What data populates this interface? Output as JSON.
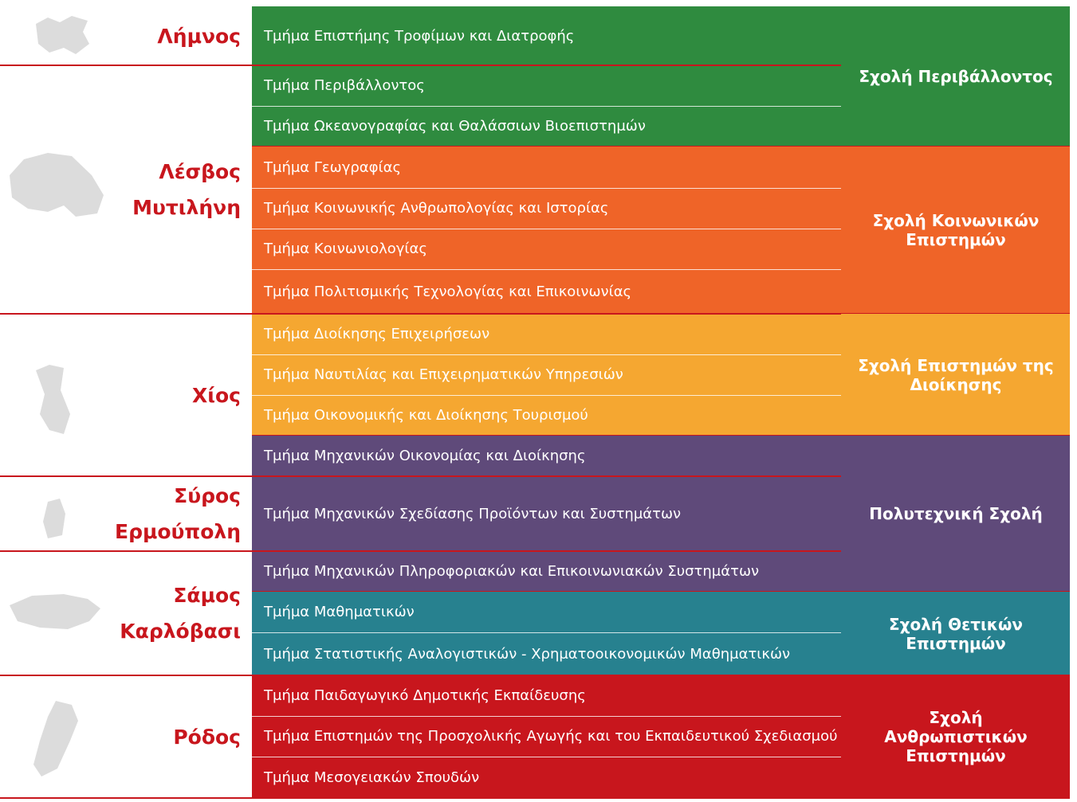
{
  "islands": [
    {
      "names": [
        "Λήμνος"
      ]
    },
    {
      "names": [
        "Λέσβος",
        "Μυτιλήνη"
      ]
    },
    {
      "names": [
        "Χίος"
      ]
    },
    {
      "names": [
        "Σύρος",
        "Ερμούπολη"
      ]
    },
    {
      "names": [
        "Σάμος",
        "Καρλόβασι"
      ]
    },
    {
      "names": [
        "Ρόδος"
      ]
    }
  ],
  "schools": [
    {
      "name": "Σχολή Περιβάλλοντος",
      "color": "#2f8b3f",
      "departments": [
        "Τμήμα Επιστήμης Τροφίμων και Διατροφής",
        "Τμήμα Περιβάλλοντος",
        "Τμήμα Ωκεανογραφίας και Θαλάσσιων Βιοεπιστημών"
      ]
    },
    {
      "name": "Σχολή Κοινωνικών Επιστημών",
      "color": "#ef6428",
      "departments": [
        "Τμήμα Γεωγραφίας",
        "Τμήμα Κοινωνικής Ανθρωπολογίας και Ιστορίας",
        "Τμήμα Κοινωνιολογίας",
        "Τμήμα Πολιτισμικής Τεχνολογίας και Επικοινωνίας"
      ]
    },
    {
      "name": "Σχολή Επιστημών της Διοίκησης",
      "color": "#f5a731",
      "departments": [
        "Τμήμα Διοίκησης Επιχειρήσεων",
        "Τμήμα Ναυτιλίας και Επιχειρηματικών Υπηρεσιών",
        "Τμήμα Οικονομικής και Διοίκησης Τουρισμού"
      ]
    },
    {
      "name": "Πολυτεχνική Σχολή",
      "color": "#5f4a7a",
      "departments": [
        "Τμήμα Μηχανικών Οικονομίας και Διοίκησης",
        "Τμήμα Μηχανικών Σχεδίασης Προϊόντων και Συστημάτων",
        "Τμήμα Μηχανικών Πληροφοριακών και Επικοινωνιακών Συστημάτων"
      ]
    },
    {
      "name": "Σχολή Θετικών Επιστημών",
      "color": "#27818f",
      "departments": [
        "Τμήμα Μαθηματικών",
        "Τμήμα Στατιστικής Αναλογιστικών - Χρηματοοικονομικών Μαθηματικών"
      ]
    },
    {
      "name": "Σχολή Ανθρωπιστικών Επιστημών",
      "color": "#c8161d",
      "departments": [
        "Τμήμα Παιδαγωγικό Δημοτικής Εκπαίδευσης",
        "Τμήμα Επιστημών της Προσχολικής Αγωγής και του Εκπαιδευτικού Σχεδιασμού",
        "Τμήμα Μεσογειακών Σπουδών"
      ]
    }
  ]
}
